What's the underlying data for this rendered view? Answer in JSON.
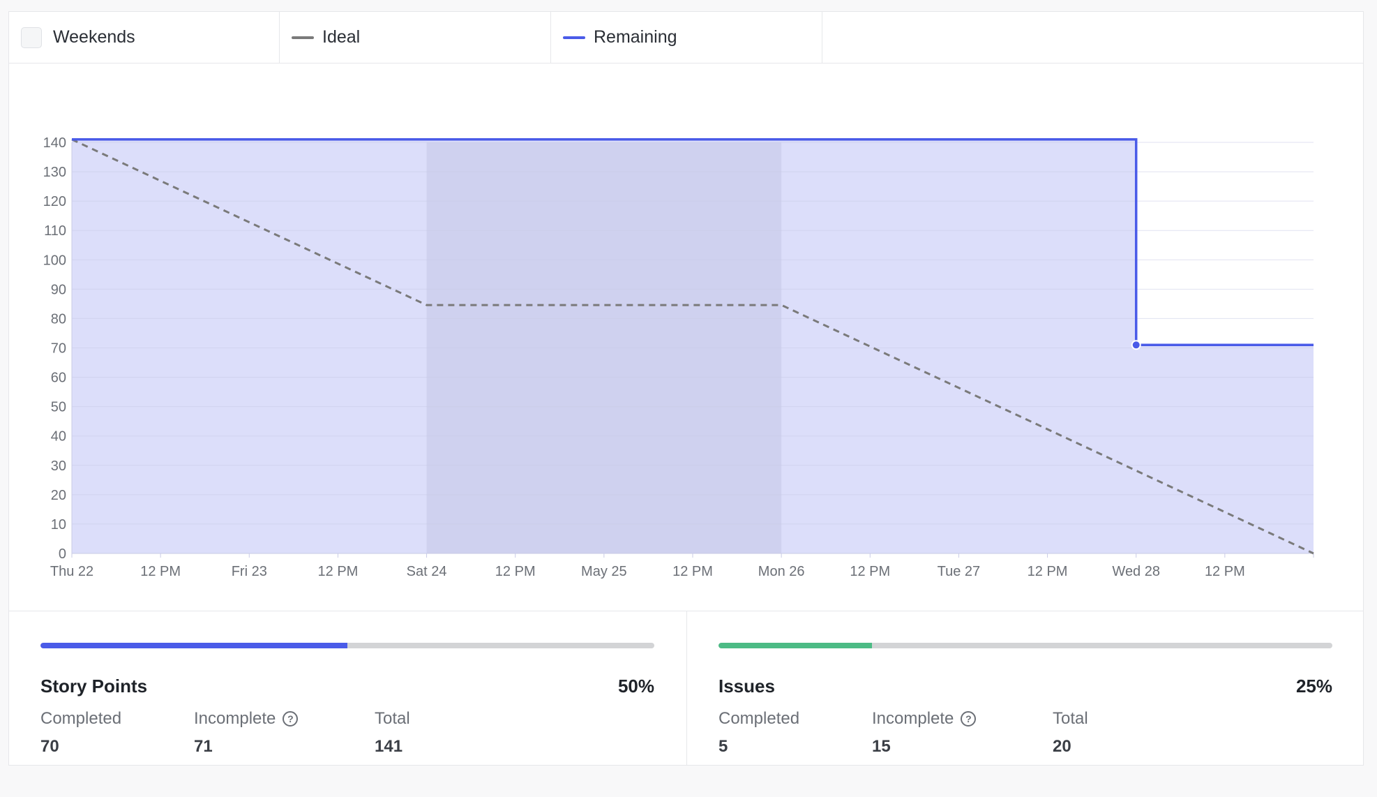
{
  "legend": {
    "weekends_label": "Weekends",
    "weekends_checked": false,
    "ideal_label": "Ideal",
    "ideal_color": "#7a7a7a",
    "remaining_label": "Remaining",
    "remaining_color": "#4a5be8"
  },
  "chart_data": {
    "type": "line",
    "title": "",
    "xlabel": "",
    "ylabel": "",
    "ylim": [
      0,
      140
    ],
    "y_ticks": [
      0,
      10,
      20,
      30,
      40,
      50,
      60,
      70,
      80,
      90,
      100,
      110,
      120,
      130,
      140
    ],
    "x_range": [
      "2024-05-23T00:00",
      "2024-05-30T00:00"
    ],
    "x_tick_labels": [
      "Thu 22",
      "12 PM",
      "Fri 23",
      "12 PM",
      "Sat 24",
      "12 PM",
      "May 25",
      "12 PM",
      "Mon 26",
      "12 PM",
      "Tue 27",
      "12 PM",
      "Wed 28",
      "12 PM"
    ],
    "weekend_band": {
      "start": "Sat 24",
      "end": "Mon 26"
    },
    "grid": true,
    "series": [
      {
        "name": "Ideal",
        "style": "dashed",
        "color": "#7a7a7a",
        "points": [
          {
            "x": "Thu 22",
            "y": 141
          },
          {
            "x": "Sat 24",
            "y": 84.6
          },
          {
            "x": "Mon 26",
            "y": 84.6
          },
          {
            "x": "Thu 29",
            "y": 0
          }
        ]
      },
      {
        "name": "Remaining",
        "style": "step",
        "color": "#4a5be8",
        "fill": "#dcdefa",
        "points": [
          {
            "x": "Thu 22",
            "y": 141
          },
          {
            "x": "Wed 28",
            "y": 141
          },
          {
            "x": "Wed 28",
            "y": 71
          },
          {
            "x": "Thu 29",
            "y": 71
          }
        ],
        "marker": {
          "x": "Wed 28",
          "y": 71
        }
      }
    ]
  },
  "stats": {
    "story_points": {
      "title": "Story Points",
      "percent_label": "50%",
      "progress": 0.5,
      "bar_color": "#4a5be8",
      "completed_label": "Completed",
      "completed": "70",
      "incomplete_label": "Incomplete",
      "incomplete": "71",
      "total_label": "Total",
      "total": "141"
    },
    "issues": {
      "title": "Issues",
      "percent_label": "25%",
      "progress": 0.25,
      "bar_color": "#4cbb85",
      "completed_label": "Completed",
      "completed": "5",
      "incomplete_label": "Incomplete",
      "incomplete": "15",
      "total_label": "Total",
      "total": "20"
    },
    "help_glyph": "?"
  }
}
